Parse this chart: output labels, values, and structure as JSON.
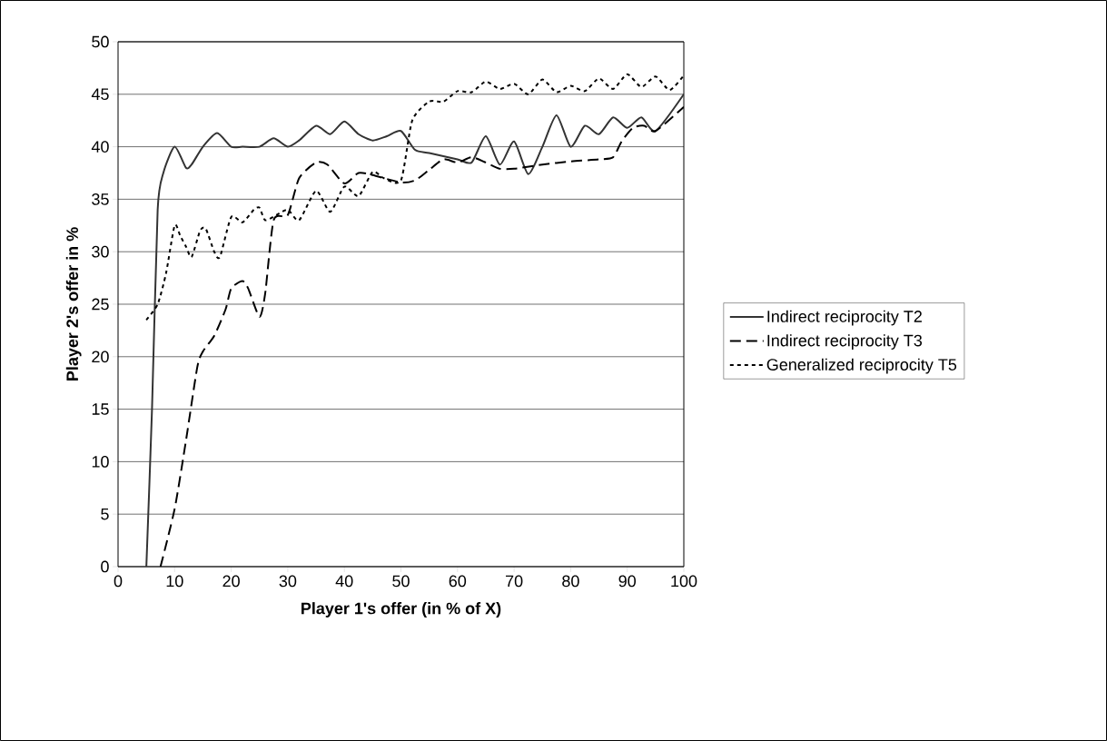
{
  "chart_data": {
    "type": "line",
    "xlabel": "Player 1's offer (in % of X)",
    "ylabel": "Player 2's offer in %",
    "xlim": [
      0,
      100
    ],
    "xticks": [
      0,
      10,
      20,
      30,
      40,
      50,
      60,
      70,
      80,
      90,
      100
    ],
    "ylim": [
      0,
      50
    ],
    "yticks": [
      0,
      5,
      10,
      15,
      20,
      25,
      30,
      35,
      40,
      45,
      50
    ],
    "grid": "y",
    "legend": "right",
    "marker": "none",
    "series": [
      {
        "name": "Indirect reciprocity T2",
        "color": "#333333",
        "line_style": "solid",
        "x": [
          5,
          6,
          7,
          8,
          10,
          12,
          13,
          15,
          17.5,
          20,
          22,
          25,
          27.5,
          30,
          32,
          35,
          37.5,
          40,
          42.5,
          45,
          47.5,
          50,
          52.5,
          55,
          60,
          62.5,
          65,
          67.5,
          70,
          72.5,
          75,
          77.5,
          80,
          82.5,
          85,
          87.5,
          90,
          92.5,
          95,
          100
        ],
        "values": [
          0,
          15,
          34,
          37.5,
          40,
          38,
          38.3,
          40,
          41.3,
          40,
          40,
          40,
          40.8,
          40,
          40.6,
          42,
          41.2,
          42.4,
          41.2,
          40.6,
          41,
          41.5,
          39.7,
          39.4,
          38.8,
          38.5,
          41,
          38.3,
          40.5,
          37.4,
          40,
          43,
          40,
          42,
          41.2,
          42.8,
          41.8,
          42.8,
          41.5,
          45
        ]
      },
      {
        "name": "Indirect reciprocity T3",
        "color": "#000000",
        "line_style": "dashed",
        "x": [
          7.5,
          10,
          12,
          14,
          15,
          17,
          19,
          20,
          22,
          23,
          25,
          26,
          27.5,
          30,
          32,
          35,
          37,
          40,
          42.5,
          45,
          50,
          52.5,
          55,
          57.5,
          60,
          62.5,
          65,
          67.5,
          70,
          75,
          80,
          85,
          87.5,
          89,
          91,
          93,
          95,
          100
        ],
        "values": [
          0,
          5.5,
          12,
          19,
          20.5,
          22,
          24.5,
          26.5,
          27.2,
          26.5,
          23.8,
          26,
          33,
          33.5,
          37,
          38.5,
          38.3,
          36.5,
          37.5,
          37.3,
          36.6,
          36.8,
          37.8,
          38.8,
          38.5,
          39,
          38.5,
          37.9,
          37.9,
          38.3,
          38.6,
          38.8,
          39,
          40.5,
          41.8,
          42,
          41.5,
          43.8
        ]
      },
      {
        "name": "Generalized reciprocity T5",
        "color": "#000000",
        "line_style": "dotted",
        "x": [
          5,
          7,
          8.5,
          10,
          11,
          12,
          13,
          14.5,
          15.5,
          17,
          18,
          20,
          22,
          24,
          25,
          26,
          28,
          30,
          32,
          35,
          37.5,
          40,
          42.5,
          45,
          47,
          50,
          52,
          55,
          57.5,
          60,
          62.5,
          65,
          67.5,
          70,
          72.5,
          75,
          77.5,
          80,
          82.5,
          85,
          87.5,
          90,
          92.5,
          95,
          97.5,
          100
        ],
        "values": [
          23.5,
          25,
          28,
          32.5,
          31.5,
          30.5,
          29.5,
          32,
          32.2,
          30,
          29.5,
          33.3,
          32.8,
          34,
          34.2,
          33,
          33.5,
          34,
          33,
          35.8,
          33.8,
          36.2,
          35.3,
          37.6,
          37,
          36.8,
          42.5,
          44.3,
          44.3,
          45.3,
          45.2,
          46.2,
          45.5,
          46,
          45,
          46.4,
          45.2,
          45.8,
          45.3,
          46.5,
          45.5,
          46.9,
          45.7,
          46.7,
          45.4,
          46.8
        ]
      }
    ]
  }
}
